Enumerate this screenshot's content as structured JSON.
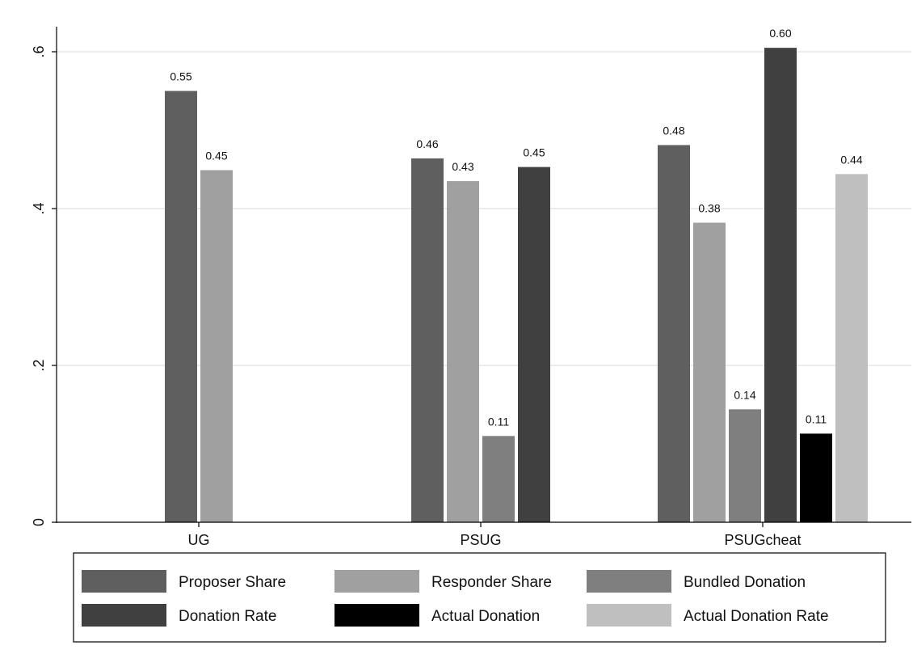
{
  "chart_data": {
    "type": "bar",
    "title": "",
    "xlabel": "",
    "ylabel": "",
    "ylim": [
      0,
      0.64
    ],
    "yticks": [
      {
        "value": 0,
        "label": "0"
      },
      {
        "value": 0.2,
        "label": ".2"
      },
      {
        "value": 0.4,
        "label": ".4"
      },
      {
        "value": 0.6,
        "label": ".6"
      }
    ],
    "grid": true,
    "legend_placement": "bottom",
    "categories": [
      "UG",
      "PSUG",
      "PSUGcheat"
    ],
    "series": [
      {
        "name": "Proposer Share",
        "color": "#5f5f5f",
        "values": [
          0.55,
          0.464,
          0.481
        ],
        "labels": [
          "0.55",
          "0.46",
          "0.48"
        ]
      },
      {
        "name": "Responder Share",
        "color": "#a0a0a0",
        "values": [
          0.449,
          0.435,
          0.382
        ],
        "labels": [
          "0.45",
          "0.43",
          "0.38"
        ]
      },
      {
        "name": "Bundled Donation",
        "color": "#7f7f7f",
        "values": [
          null,
          0.11,
          0.144
        ],
        "labels": [
          "",
          "0.11",
          "0.14"
        ]
      },
      {
        "name": "Donation Rate",
        "color": "#404040",
        "values": [
          null,
          0.453,
          0.605
        ],
        "labels": [
          "",
          "0.45",
          "0.60"
        ]
      },
      {
        "name": "Actual Donation",
        "color": "#000000",
        "values": [
          null,
          null,
          0.113
        ],
        "labels": [
          "",
          "",
          "0.11"
        ]
      },
      {
        "name": "Actual Donation Rate",
        "color": "#bfbfbf",
        "values": [
          null,
          null,
          0.444
        ],
        "labels": [
          "",
          "",
          "0.44"
        ]
      }
    ]
  }
}
